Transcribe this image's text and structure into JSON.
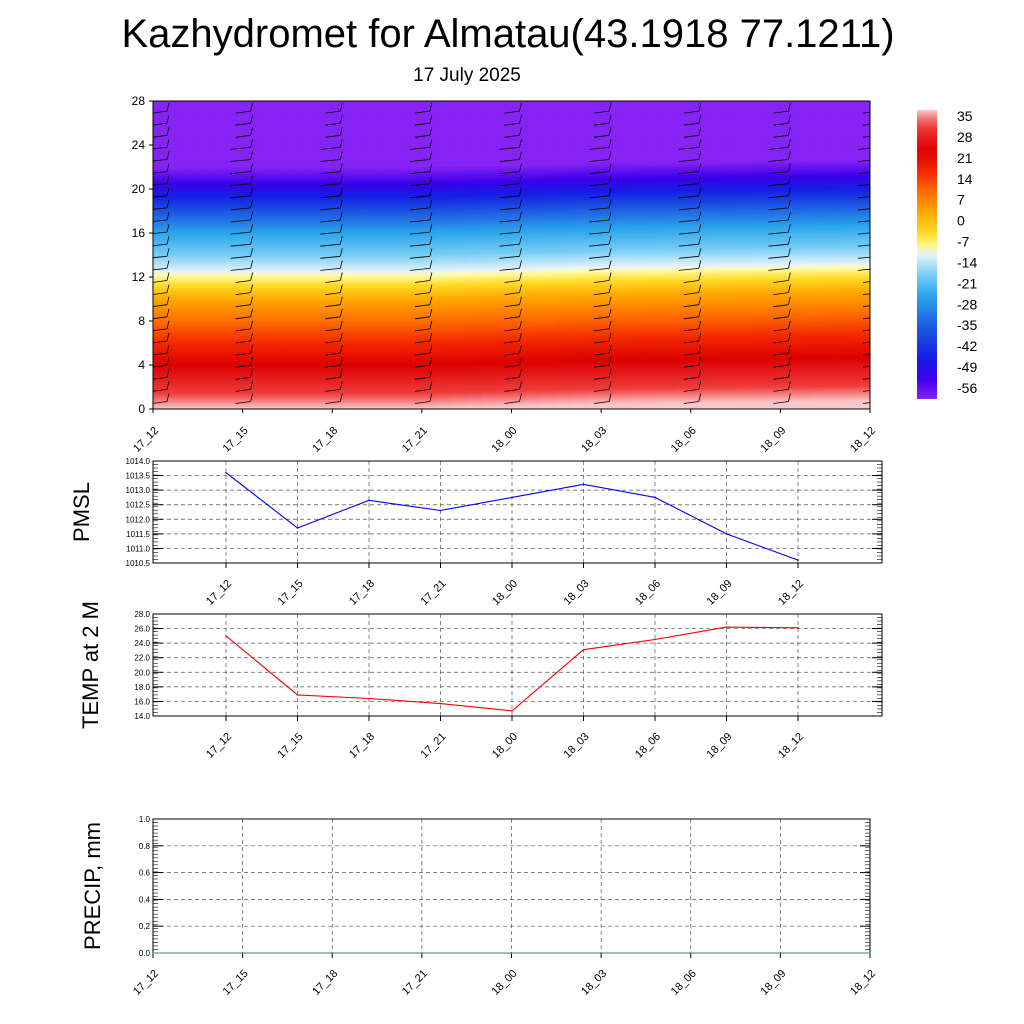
{
  "header": {
    "title": "Kazhydromet for Almatau(43.1918 77.1211)",
    "date": "17 July 2025"
  },
  "colors": {
    "pmsl_line": "#0000ff",
    "temp_line": "#ff0000",
    "precip_line": "#2e8b57"
  },
  "chart_data": [
    {
      "id": "vertical_profile",
      "type": "heatmap",
      "x_tick_labels": [
        "17_12",
        "17_15",
        "17_18",
        "17_21",
        "18_00",
        "18_03",
        "18_06",
        "18_09",
        "18_12"
      ],
      "y_tick_labels": [
        "0",
        "4",
        "8",
        "12",
        "16",
        "20",
        "24",
        "28"
      ],
      "ylim": [
        0,
        28
      ],
      "colorbar": {
        "labels": [
          "35",
          "28",
          "21",
          "14",
          "7",
          "0",
          "-7",
          "-14",
          "-21",
          "-28",
          "-35",
          "-42",
          "-49",
          "-56"
        ],
        "range": [
          -63,
          35
        ]
      },
      "temperature_profile": {
        "levels": [
          0,
          2,
          4,
          6,
          8,
          10,
          11.8,
          12.5,
          14,
          16,
          18,
          19.5,
          20.5,
          22,
          24,
          28
        ],
        "values": [
          35,
          28,
          21,
          14,
          7,
          0,
          -10,
          -14,
          -21,
          -28,
          -40,
          -50,
          -56,
          -63,
          -63,
          -63
        ],
        "tropopause_shift_by_time": [
          0,
          0,
          0,
          0,
          0.2,
          0.4,
          0.5,
          0.6,
          0.7
        ]
      },
      "wind_barbs": true
    },
    {
      "id": "pmsl",
      "type": "line",
      "ylabel": "PMSL",
      "x_tick_labels": [
        "17_12",
        "17_15",
        "17_18",
        "17_21",
        "18_00",
        "18_03",
        "18_06",
        "18_09",
        "18_12"
      ],
      "y_tick_labels": [
        "1010.5",
        "1011.0",
        "1011.5",
        "1012.0",
        "1012.5",
        "1013.0",
        "1013.5",
        "1014.0"
      ],
      "ylim": [
        1010.5,
        1014.0
      ],
      "grid": true,
      "series": [
        {
          "values": [
            1013.6,
            1011.7,
            1012.65,
            1012.3,
            1012.75,
            1013.2,
            1012.75,
            1011.5,
            1010.6
          ]
        }
      ]
    },
    {
      "id": "temp2m",
      "type": "line",
      "ylabel": "TEMP at 2 M",
      "x_tick_labels": [
        "17_12",
        "17_15",
        "17_18",
        "17_21",
        "18_00",
        "18_03",
        "18_06",
        "18_09",
        "18_12"
      ],
      "y_tick_labels": [
        "14.0",
        "16.0",
        "18.0",
        "20.0",
        "22.0",
        "24.0",
        "26.0",
        "28.0"
      ],
      "ylim": [
        14.0,
        28.0
      ],
      "grid": true,
      "series": [
        {
          "values": [
            25.0,
            16.9,
            16.4,
            15.7,
            14.7,
            23.1,
            24.5,
            26.2,
            26.1
          ]
        }
      ]
    },
    {
      "id": "precip",
      "type": "line",
      "ylabel": "PRECIP, mm",
      "x_tick_labels": [
        "17_12",
        "17_15",
        "17_18",
        "17_21",
        "18_00",
        "18_03",
        "18_06",
        "18_09",
        "18_12"
      ],
      "y_tick_labels": [
        "0.0",
        "0.2",
        "0.4",
        "0.6",
        "0.8",
        "1.0"
      ],
      "ylim": [
        0.0,
        1.0
      ],
      "grid": true,
      "series": [
        {
          "values": [
            0,
            0,
            0,
            0,
            0,
            0,
            0,
            0,
            0
          ]
        }
      ]
    }
  ]
}
